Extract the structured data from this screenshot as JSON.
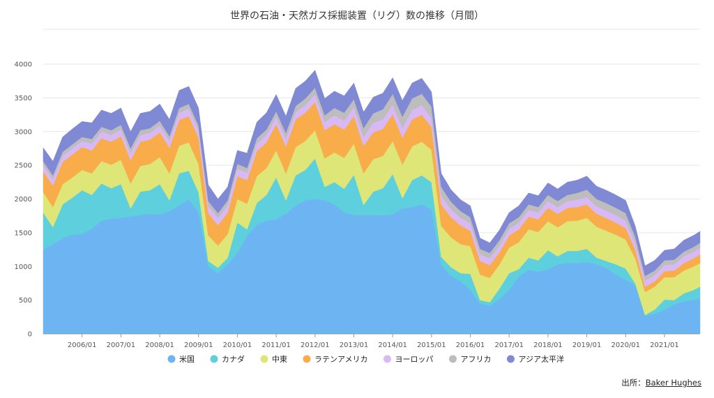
{
  "chart_data": {
    "type": "area",
    "stacked": true,
    "title": "世界の石油・天然ガス採掘装置（リグ）数の推移（月間）",
    "source_prefix": "出所：",
    "source_name": "Baker Hughes",
    "ylim": [
      0,
      4000
    ],
    "yticks": [
      0,
      500,
      1000,
      1500,
      2000,
      2500,
      3000,
      3500,
      4000
    ],
    "xlim": [
      "2005-01",
      "2021-12"
    ],
    "xticks": [
      "2006/01",
      "2007/01",
      "2008/01",
      "2009/01",
      "2010/01",
      "2011/01",
      "2012/01",
      "2013/01",
      "2014/01",
      "2015/01",
      "2016/01",
      "2017/01",
      "2018/01",
      "2019/01",
      "2020/01",
      "2021/01"
    ],
    "grid": true,
    "legend_position": "bottom",
    "x": [
      "2005-01",
      "2005-04",
      "2005-07",
      "2005-10",
      "2006-01",
      "2006-04",
      "2006-07",
      "2006-10",
      "2007-01",
      "2007-04",
      "2007-07",
      "2007-10",
      "2008-01",
      "2008-04",
      "2008-07",
      "2008-10",
      "2009-01",
      "2009-04",
      "2009-07",
      "2009-10",
      "2010-01",
      "2010-04",
      "2010-07",
      "2010-10",
      "2011-01",
      "2011-04",
      "2011-07",
      "2011-10",
      "2012-01",
      "2012-04",
      "2012-07",
      "2012-10",
      "2013-01",
      "2013-04",
      "2013-07",
      "2013-10",
      "2014-01",
      "2014-04",
      "2014-07",
      "2014-10",
      "2015-01",
      "2015-04",
      "2015-07",
      "2015-10",
      "2016-01",
      "2016-04",
      "2016-07",
      "2016-10",
      "2017-01",
      "2017-04",
      "2017-07",
      "2017-10",
      "2018-01",
      "2018-04",
      "2018-07",
      "2018-10",
      "2019-01",
      "2019-04",
      "2019-07",
      "2019-10",
      "2020-01",
      "2020-04",
      "2020-07",
      "2020-10",
      "2021-01",
      "2021-04",
      "2021-07",
      "2021-10",
      "2021-12"
    ],
    "series": [
      {
        "name": "米国",
        "color": "#6cb4f2",
        "values": [
          1250,
          1330,
          1420,
          1470,
          1480,
          1560,
          1680,
          1710,
          1720,
          1740,
          1760,
          1780,
          1770,
          1820,
          1900,
          2000,
          1800,
          1000,
          900,
          1030,
          1200,
          1450,
          1620,
          1680,
          1700,
          1780,
          1900,
          1980,
          2000,
          1980,
          1920,
          1800,
          1760,
          1760,
          1760,
          1760,
          1770,
          1860,
          1880,
          1920,
          1850,
          1020,
          860,
          780,
          650,
          450,
          420,
          520,
          650,
          850,
          950,
          920,
          960,
          1030,
          1050,
          1050,
          1060,
          1030,
          980,
          880,
          800,
          720,
          260,
          300,
          360,
          440,
          480,
          500,
          530
        ]
      },
      {
        "name": "カナダ",
        "color": "#5ecfdc",
        "values": [
          550,
          250,
          500,
          550,
          650,
          500,
          550,
          450,
          500,
          120,
          350,
          350,
          450,
          160,
          480,
          420,
          300,
          80,
          80,
          100,
          450,
          100,
          320,
          380,
          620,
          200,
          450,
          450,
          600,
          200,
          330,
          350,
          600,
          150,
          350,
          400,
          600,
          150,
          400,
          430,
          400,
          120,
          130,
          120,
          240,
          50,
          50,
          150,
          250,
          110,
          180,
          170,
          280,
          120,
          180,
          180,
          200,
          100,
          100,
          150,
          170,
          25,
          20,
          60,
          150,
          60,
          120,
          150,
          170
        ]
      },
      {
        "name": "中東",
        "color": "#dde676",
        "values": [
          300,
          300,
          300,
          300,
          300,
          320,
          330,
          350,
          360,
          370,
          380,
          390,
          400,
          400,
          410,
          420,
          420,
          380,
          330,
          350,
          350,
          380,
          400,
          400,
          400,
          400,
          420,
          430,
          420,
          420,
          440,
          460,
          460,
          470,
          480,
          480,
          490,
          500,
          500,
          500,
          480,
          460,
          440,
          430,
          410,
          380,
          360,
          360,
          380,
          400,
          420,
          420,
          430,
          430,
          440,
          450,
          460,
          460,
          450,
          440,
          430,
          370,
          340,
          340,
          330,
          340,
          340,
          350,
          350
        ]
      },
      {
        "name": "ラテンアメリカ",
        "color": "#f8ad4a",
        "values": [
          310,
          320,
          330,
          340,
          340,
          340,
          340,
          340,
          350,
          350,
          360,
          360,
          370,
          380,
          380,
          390,
          390,
          330,
          300,
          320,
          340,
          350,
          370,
          380,
          390,
          400,
          410,
          420,
          420,
          420,
          420,
          420,
          410,
          410,
          400,
          400,
          400,
          400,
          400,
          400,
          340,
          320,
          300,
          280,
          230,
          200,
          190,
          180,
          180,
          190,
          190,
          190,
          200,
          200,
          200,
          200,
          200,
          190,
          190,
          180,
          170,
          130,
          80,
          80,
          90,
          100,
          110,
          120,
          130
        ]
      },
      {
        "name": "ヨーロッパ",
        "color": "#d8b9f5",
        "values": [
          90,
          90,
          90,
          90,
          90,
          100,
          100,
          100,
          100,
          100,
          100,
          100,
          100,
          100,
          110,
          110,
          110,
          110,
          110,
          110,
          110,
          110,
          110,
          110,
          110,
          110,
          110,
          110,
          110,
          120,
          130,
          130,
          130,
          130,
          140,
          140,
          140,
          140,
          140,
          140,
          130,
          130,
          120,
          110,
          110,
          100,
          100,
          100,
          100,
          100,
          100,
          100,
          100,
          100,
          100,
          110,
          110,
          110,
          110,
          110,
          110,
          100,
          90,
          90,
          90,
          90,
          100,
          100,
          100
        ]
      },
      {
        "name": "アフリカ",
        "color": "#bdbdbd",
        "values": [
          60,
          60,
          60,
          60,
          60,
          70,
          70,
          70,
          70,
          70,
          70,
          70,
          70,
          70,
          70,
          70,
          70,
          70,
          70,
          70,
          70,
          70,
          80,
          80,
          80,
          90,
          90,
          100,
          100,
          100,
          110,
          120,
          120,
          130,
          140,
          150,
          160,
          170,
          170,
          170,
          170,
          130,
          110,
          100,
          90,
          80,
          80,
          80,
          80,
          80,
          80,
          80,
          90,
          90,
          90,
          100,
          110,
          110,
          110,
          110,
          110,
          90,
          70,
          70,
          70,
          70,
          70,
          70,
          70
        ]
      },
      {
        "name": "アジア太平洋",
        "color": "#8089d4",
        "values": [
          200,
          210,
          220,
          230,
          230,
          240,
          250,
          250,
          250,
          250,
          250,
          250,
          250,
          250,
          260,
          260,
          260,
          240,
          210,
          200,
          200,
          220,
          240,
          250,
          250,
          250,
          260,
          260,
          260,
          250,
          250,
          250,
          240,
          240,
          240,
          240,
          240,
          240,
          230,
          230,
          220,
          200,
          180,
          170,
          170,
          160,
          150,
          150,
          160,
          170,
          170,
          170,
          180,
          180,
          190,
          190,
          200,
          190,
          190,
          190,
          190,
          160,
          150,
          150,
          150,
          160,
          170,
          170,
          170
        ]
      }
    ]
  }
}
